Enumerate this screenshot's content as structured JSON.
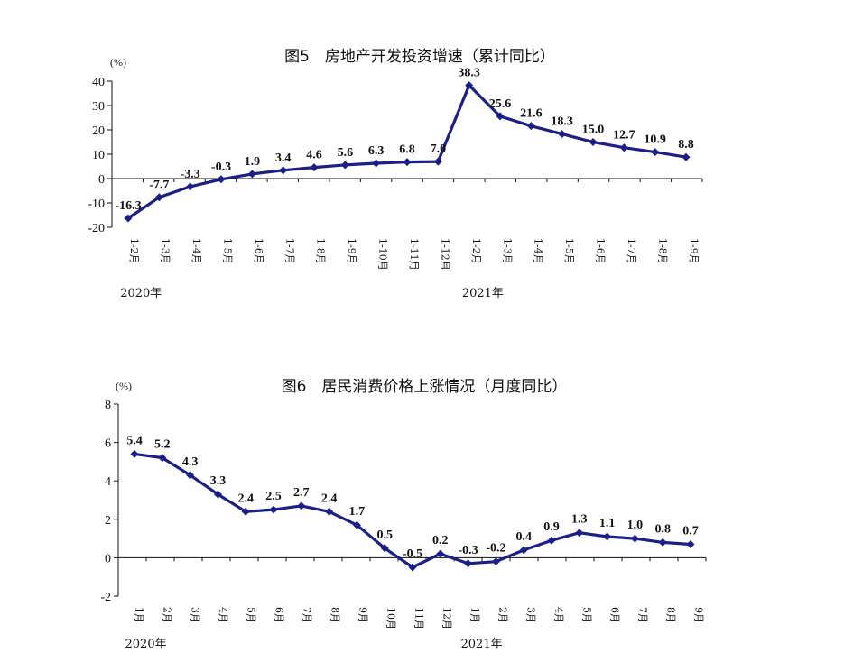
{
  "chart_data": [
    {
      "type": "line",
      "title": "图5　房地产开发投资增速（累计同比）",
      "unit_label": "(%)",
      "ylim": [
        -20,
        40
      ],
      "yticks": [
        40,
        30,
        20,
        10,
        0,
        -10,
        -20
      ],
      "categories": [
        "1-2月",
        "1-3月",
        "1-4月",
        "1-5月",
        "1-6月",
        "1-7月",
        "1-8月",
        "1-9月",
        "1-10月",
        "1-11月",
        "1-12月",
        "1-2月",
        "1-3月",
        "1-4月",
        "1-5月",
        "1-6月",
        "1-7月",
        "1-8月",
        "1-9月"
      ],
      "series": [
        {
          "values": [
            -16.3,
            -7.7,
            -3.3,
            -0.3,
            1.9,
            3.4,
            4.6,
            5.6,
            6.3,
            6.8,
            7.0,
            38.3,
            25.6,
            21.6,
            18.3,
            15.0,
            12.7,
            10.9,
            8.8
          ]
        }
      ],
      "value_labels": [
        "-16.3",
        "-7.7",
        "-3.3",
        "-0.3",
        "1.9",
        "3.4",
        "4.6",
        "5.6",
        "6.3",
        "6.8",
        "7.0",
        "38.3",
        "25.6",
        "21.6",
        "18.3",
        "15.0",
        "12.7",
        "10.9",
        "8.8"
      ],
      "year_labels": [
        {
          "text": "2020年",
          "index": 0
        },
        {
          "text": "2021年",
          "index": 11
        }
      ],
      "line_color": "#1b1f8a",
      "grid": false
    },
    {
      "type": "line",
      "title": "图6　居民消费价格上涨情况（月度同比）",
      "unit_label": "(%)",
      "ylim": [
        -2,
        8
      ],
      "yticks": [
        8,
        6,
        4,
        2,
        0,
        -2
      ],
      "categories": [
        "1月",
        "2月",
        "3月",
        "4月",
        "5月",
        "6月",
        "7月",
        "8月",
        "9月",
        "10月",
        "11月",
        "12月",
        "1月",
        "2月",
        "3月",
        "4月",
        "5月",
        "6月",
        "7月",
        "8月",
        "9月"
      ],
      "series": [
        {
          "values": [
            5.4,
            5.2,
            4.3,
            3.3,
            2.4,
            2.5,
            2.7,
            2.4,
            1.7,
            0.5,
            -0.5,
            0.2,
            -0.3,
            -0.2,
            0.4,
            0.9,
            1.3,
            1.1,
            1.0,
            0.8,
            0.7
          ]
        }
      ],
      "value_labels": [
        "5.4",
        "5.2",
        "4.3",
        "3.3",
        "2.4",
        "2.5",
        "2.7",
        "2.4",
        "1.7",
        "0.5",
        "-0.5",
        "0.2",
        "-0.3",
        "-0.2",
        "0.4",
        "0.9",
        "1.3",
        "1.1",
        "1.0",
        "0.8",
        "0.7"
      ],
      "year_labels": [
        {
          "text": "2020年",
          "index": 0
        },
        {
          "text": "2021年",
          "index": 12
        }
      ],
      "line_color": "#1b1f8a",
      "grid": false
    }
  ]
}
